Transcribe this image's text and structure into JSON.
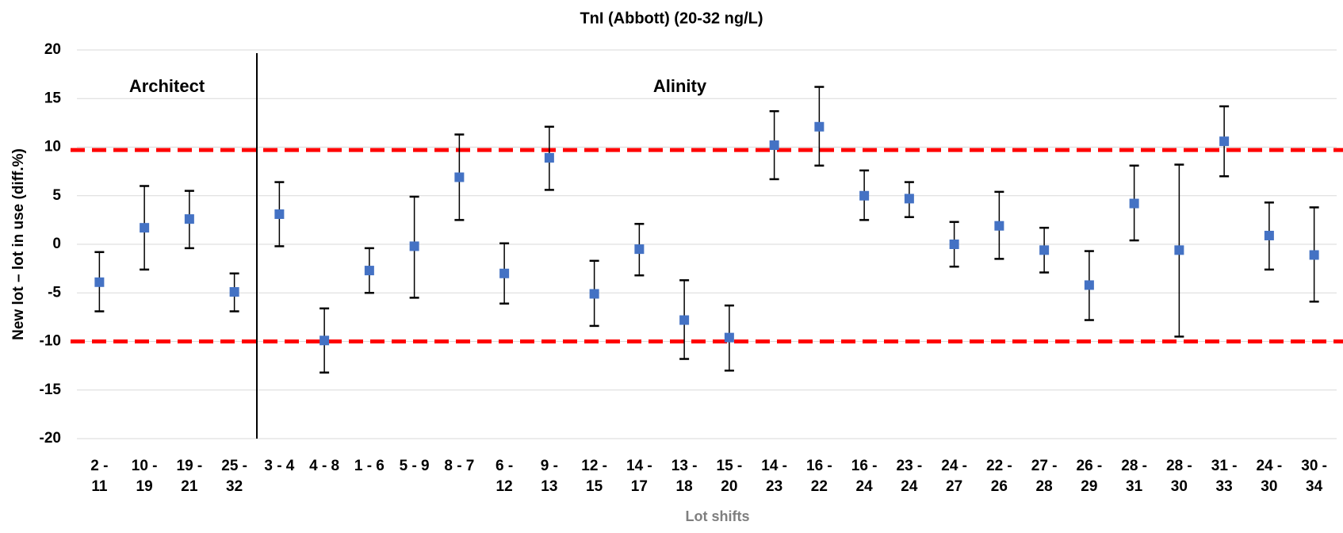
{
  "chart_data": {
    "type": "errorbar",
    "title": "TnI (Abbott) (20-32 ng/L)",
    "x_label": "Lot shifts",
    "y_label": "New lot – lot in use (diff.%)",
    "categories": [
      "2 - 11",
      "10 - 19",
      "19 - 21",
      "25 - 32",
      "3 - 4",
      "4 - 8",
      "1 - 6",
      "5 - 9",
      "8 - 7",
      "6 - 12",
      "9 - 13",
      "12 - 15",
      "14 - 17",
      "13 - 18",
      "15 - 20",
      "14 - 23",
      "16 - 22",
      "16 - 24",
      "23 - 24",
      "24 - 27",
      "22 - 26",
      "27 - 28",
      "26 - 29",
      "28 - 31",
      "28 - 30",
      "31 - 33",
      "24 - 30",
      "30 - 34"
    ],
    "series": [
      {
        "color": "#4472c4",
        "values": [
          -3.9,
          1.7,
          2.6,
          -4.9,
          3.1,
          -9.9,
          -2.7,
          -0.2,
          6.9,
          -3.0,
          8.9,
          -5.1,
          -0.5,
          -7.8,
          -9.6,
          10.2,
          12.1,
          5.0,
          4.7,
          0.0,
          1.9,
          -0.6,
          -4.2,
          4.2,
          -0.6,
          10.6,
          0.9,
          -1.1
        ],
        "upper": [
          -0.8,
          6.0,
          5.5,
          -3.0,
          6.4,
          -6.6,
          -0.4,
          4.9,
          11.3,
          0.1,
          12.1,
          -1.7,
          2.1,
          -3.7,
          -6.3,
          13.7,
          16.2,
          7.6,
          6.4,
          2.3,
          5.4,
          1.7,
          -0.7,
          8.1,
          8.2,
          14.2,
          4.3,
          3.8
        ],
        "lower": [
          -6.9,
          -2.6,
          -0.4,
          -6.9,
          -0.2,
          -13.2,
          -5.0,
          -5.5,
          2.5,
          -6.1,
          5.6,
          -8.4,
          -3.2,
          -11.8,
          -13.0,
          6.7,
          8.1,
          2.5,
          2.8,
          -2.3,
          -1.5,
          -2.9,
          -7.8,
          0.4,
          -9.5,
          7.0,
          -2.6,
          -5.9
        ]
      }
    ],
    "groups": [
      {
        "label": "Architect",
        "size": 4
      },
      {
        "label": "Alinity",
        "size": 24
      }
    ],
    "reference_lines": [
      {
        "value": 9.7,
        "color": "#ff0000"
      },
      {
        "value": -10,
        "color": "#ff0000"
      }
    ],
    "ylim": [
      -20,
      20
    ],
    "yticks": [
      -20,
      -15,
      -10,
      -5,
      0,
      5,
      10,
      15,
      20
    ],
    "grid": true
  }
}
